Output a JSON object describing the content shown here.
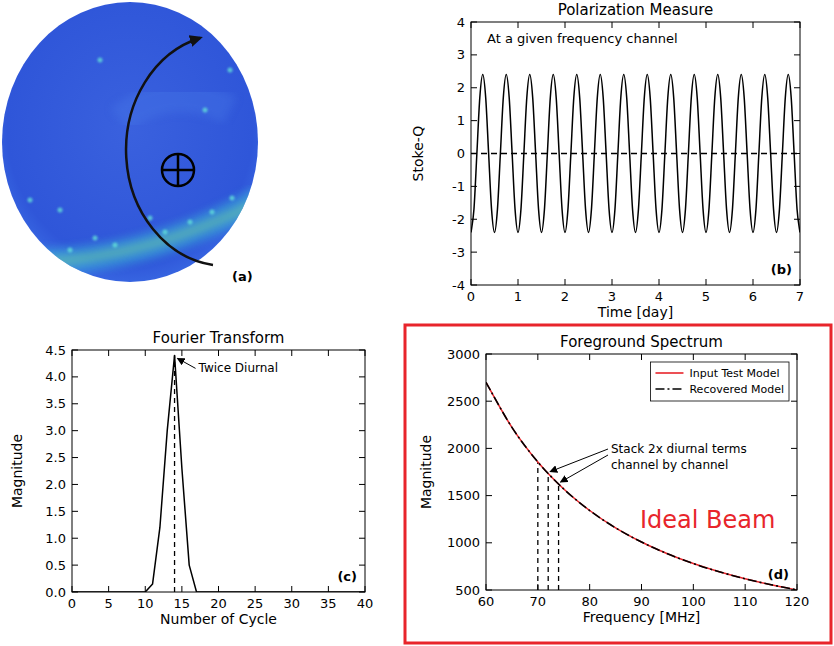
{
  "chart_data": [
    {
      "type": "image",
      "label": "(a)"
    },
    {
      "type": "line",
      "title": "Polarization Measure",
      "x_label": "Time [day]",
      "y_label": "Stoke-Q",
      "label": "(b)",
      "annotations": [
        {
          "text": "At a given frequency channel"
        }
      ],
      "xlim": [
        0,
        7
      ],
      "xticks": [
        0,
        1,
        2,
        3,
        4,
        5,
        6,
        7
      ],
      "ylim": [
        -4,
        4
      ],
      "yticks": [
        -4,
        -3,
        -2,
        -1,
        0,
        1,
        2,
        3,
        4
      ],
      "series": [
        {
          "color": "#000000",
          "line_style": "solid",
          "x": [
            0,
            0.0625,
            0.125,
            0.1875,
            0.25,
            0.3125,
            0.375,
            0.4375,
            0.5,
            0.5625,
            0.625,
            0.6875,
            0.75,
            0.8125,
            0.875,
            0.9375,
            1,
            1.0625,
            1.125,
            1.1875,
            1.25,
            1.3125,
            1.375,
            1.4375,
            1.5,
            1.5625,
            1.625,
            1.6875,
            1.75,
            1.8125,
            1.875,
            1.9375,
            2,
            2.0625,
            2.125,
            2.1875,
            2.25,
            2.3125,
            2.375,
            2.4375,
            2.5,
            2.5625,
            2.625,
            2.6875,
            2.75,
            2.8125,
            2.875,
            2.9375,
            3,
            3.0625,
            3.125,
            3.1875,
            3.25,
            3.3125,
            3.375,
            3.4375,
            3.5,
            3.5625,
            3.625,
            3.6875,
            3.75,
            3.8125,
            3.875,
            3.9375,
            4,
            4.0625,
            4.125,
            4.1875,
            4.25,
            4.3125,
            4.375,
            4.4375,
            4.5,
            4.5625,
            4.625,
            4.6875,
            4.75,
            4.8125,
            4.875,
            4.9375,
            5,
            5.0625,
            5.125,
            5.1875,
            5.25,
            5.3125,
            5.375,
            5.4375,
            5.5,
            5.5625,
            5.625,
            5.6875,
            5.75,
            5.8125,
            5.875,
            5.9375,
            6,
            6.0625,
            6.125,
            6.1875,
            6.25,
            6.3125,
            6.375,
            6.4375,
            6.5,
            6.5625,
            6.625,
            6.6875,
            6.75,
            6.8125,
            6.875,
            6.9375,
            7
          ],
          "values": [
            -2.4,
            -1.7,
            0,
            1.7,
            2.4,
            1.7,
            0,
            -1.7,
            -2.4,
            -1.7,
            0,
            1.7,
            2.4,
            1.7,
            0,
            -1.7,
            -2.4,
            -1.7,
            0,
            1.7,
            2.4,
            1.7,
            0,
            -1.7,
            -2.4,
            -1.7,
            0,
            1.7,
            2.4,
            1.7,
            0,
            -1.7,
            -2.4,
            -1.7,
            0,
            1.7,
            2.4,
            1.7,
            0,
            -1.7,
            -2.4,
            -1.7,
            0,
            1.7,
            2.4,
            1.7,
            0,
            -1.7,
            -2.4,
            -1.7,
            0,
            1.7,
            2.4,
            1.7,
            0,
            -1.7,
            -2.4,
            -1.7,
            0,
            1.7,
            2.4,
            1.7,
            0,
            -1.7,
            -2.4,
            -1.7,
            0,
            1.7,
            2.4,
            1.7,
            0,
            -1.7,
            -2.4,
            -1.7,
            0,
            1.7,
            2.4,
            1.7,
            0,
            -1.7,
            -2.4,
            -1.7,
            0,
            1.7,
            2.4,
            1.7,
            0,
            -1.7,
            -2.4,
            -1.7,
            0,
            1.7,
            2.4,
            1.7,
            0,
            -1.7,
            -2.4,
            -1.7,
            0,
            1.7,
            2.4,
            1.7,
            0,
            -1.7,
            -2.4,
            -1.7,
            0,
            1.7,
            2.4,
            1.7,
            0,
            -1.7,
            -2.4
          ]
        },
        {
          "color": "#000000",
          "line_style": "dashed",
          "x": [
            0,
            7
          ],
          "values": [
            0,
            0
          ]
        }
      ]
    },
    {
      "type": "line",
      "title": "Fourier Transform",
      "x_label": "Number of Cycle",
      "y_label": "Magnitude",
      "label": "(c)",
      "annotations": [
        {
          "text": "Twice Diurnal"
        }
      ],
      "vlines": [
        {
          "x": 14,
          "y": 4.4
        }
      ],
      "xlim": [
        0,
        40
      ],
      "xticks": [
        0,
        5,
        10,
        15,
        20,
        25,
        30,
        35,
        40
      ],
      "ylim": [
        0,
        4.5
      ],
      "yticks": [
        {
          "value": 0,
          "label": "0.0"
        },
        0.5,
        {
          "value": 1,
          "label": "1.0"
        },
        1.5,
        {
          "value": 2,
          "label": "2.0"
        },
        2.5,
        {
          "value": 3,
          "label": "3.0"
        },
        3.5,
        {
          "value": 4,
          "label": "4.0"
        },
        4.5
      ],
      "series": [
        {
          "color": "#000000",
          "line_style": "solid",
          "x": [
            0,
            10,
            11,
            12,
            13,
            14,
            15,
            16,
            17,
            40
          ],
          "values": [
            0,
            0,
            0.15,
            1.2,
            3.0,
            4.4,
            2.3,
            0.5,
            0,
            0
          ]
        }
      ]
    },
    {
      "type": "line",
      "title": "Foreground Spectrum",
      "x_label": "Frequency [MHz]",
      "y_label": "Magnitude",
      "label": "(d)",
      "legend": "upper right",
      "annotations": [
        {
          "text": "Stack 2x diurnal terms\nchannel by channel"
        },
        {
          "text": "Ideal Beam",
          "color": "#e8252b"
        }
      ],
      "vlines": [
        {
          "x": 70,
          "y": 1856
        },
        {
          "x": 72,
          "y": 1733
        },
        {
          "x": 74,
          "y": 1622
        }
      ],
      "xlim": [
        60,
        120
      ],
      "xticks": [
        60,
        70,
        80,
        90,
        100,
        110,
        120
      ],
      "ylim": [
        500,
        3000
      ],
      "yticks": [
        500,
        1000,
        1500,
        2000,
        2500,
        3000
      ],
      "series": [
        {
          "name": "Input Test Model",
          "color": "#e8252b",
          "line_style": "solid",
          "x": [
            60,
            65,
            70,
            75,
            80,
            85,
            90,
            95,
            100,
            105,
            110,
            115,
            120
          ],
          "values": [
            2700,
            2223,
            1856,
            1570,
            1342,
            1158,
            1008,
            884,
            780,
            693,
            619,
            556,
            501
          ]
        },
        {
          "name": "Recovered Model",
          "color": "#000000",
          "line_style": "dashdot",
          "x": [
            60,
            65,
            70,
            75,
            80,
            85,
            90,
            95,
            100,
            105,
            110,
            115,
            120
          ],
          "values": [
            2700,
            2223,
            1856,
            1570,
            1342,
            1158,
            1008,
            884,
            780,
            693,
            619,
            556,
            501
          ]
        }
      ]
    }
  ]
}
